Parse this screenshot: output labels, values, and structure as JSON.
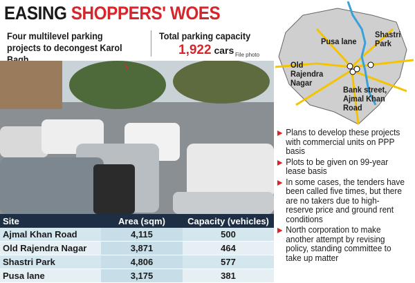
{
  "header": {
    "title_black": "EASING",
    "title_red": "SHOPPERS' WOES"
  },
  "subheader": {
    "projects": "Four multilevel parking projects to decongest Karol Bagh",
    "capacity_label": "Total parking capacity",
    "capacity_value": "1,922",
    "capacity_unit": "cars",
    "photo_credit": "File photo"
  },
  "map": {
    "labels": [
      "Pusa lane",
      "Shastri Park",
      "Old Rajendra Nagar",
      "Bank street, Ajmal Khan Road"
    ]
  },
  "bullets": [
    "Plans to develop these projects with commercial units on PPP basis",
    "Plots to be given on 99-year lease basis",
    "In some cases, the tenders have been called five times, but there are no takers due to high-reserve price and ground rent conditions",
    "North corporation to make another attempt by revising policy, standing committee to take up matter"
  ],
  "table": {
    "header": [
      "Site",
      "Area (sqm)",
      "Capacity (vehicles)"
    ],
    "rows": [
      [
        "Ajmal Khan Road",
        "4,115",
        "500"
      ],
      [
        "Old Rajendra Nagar",
        "3,871",
        "464"
      ],
      [
        "Shastri Park",
        "4,806",
        "577"
      ],
      [
        "Pusa lane",
        "3,175",
        "381"
      ]
    ]
  }
}
